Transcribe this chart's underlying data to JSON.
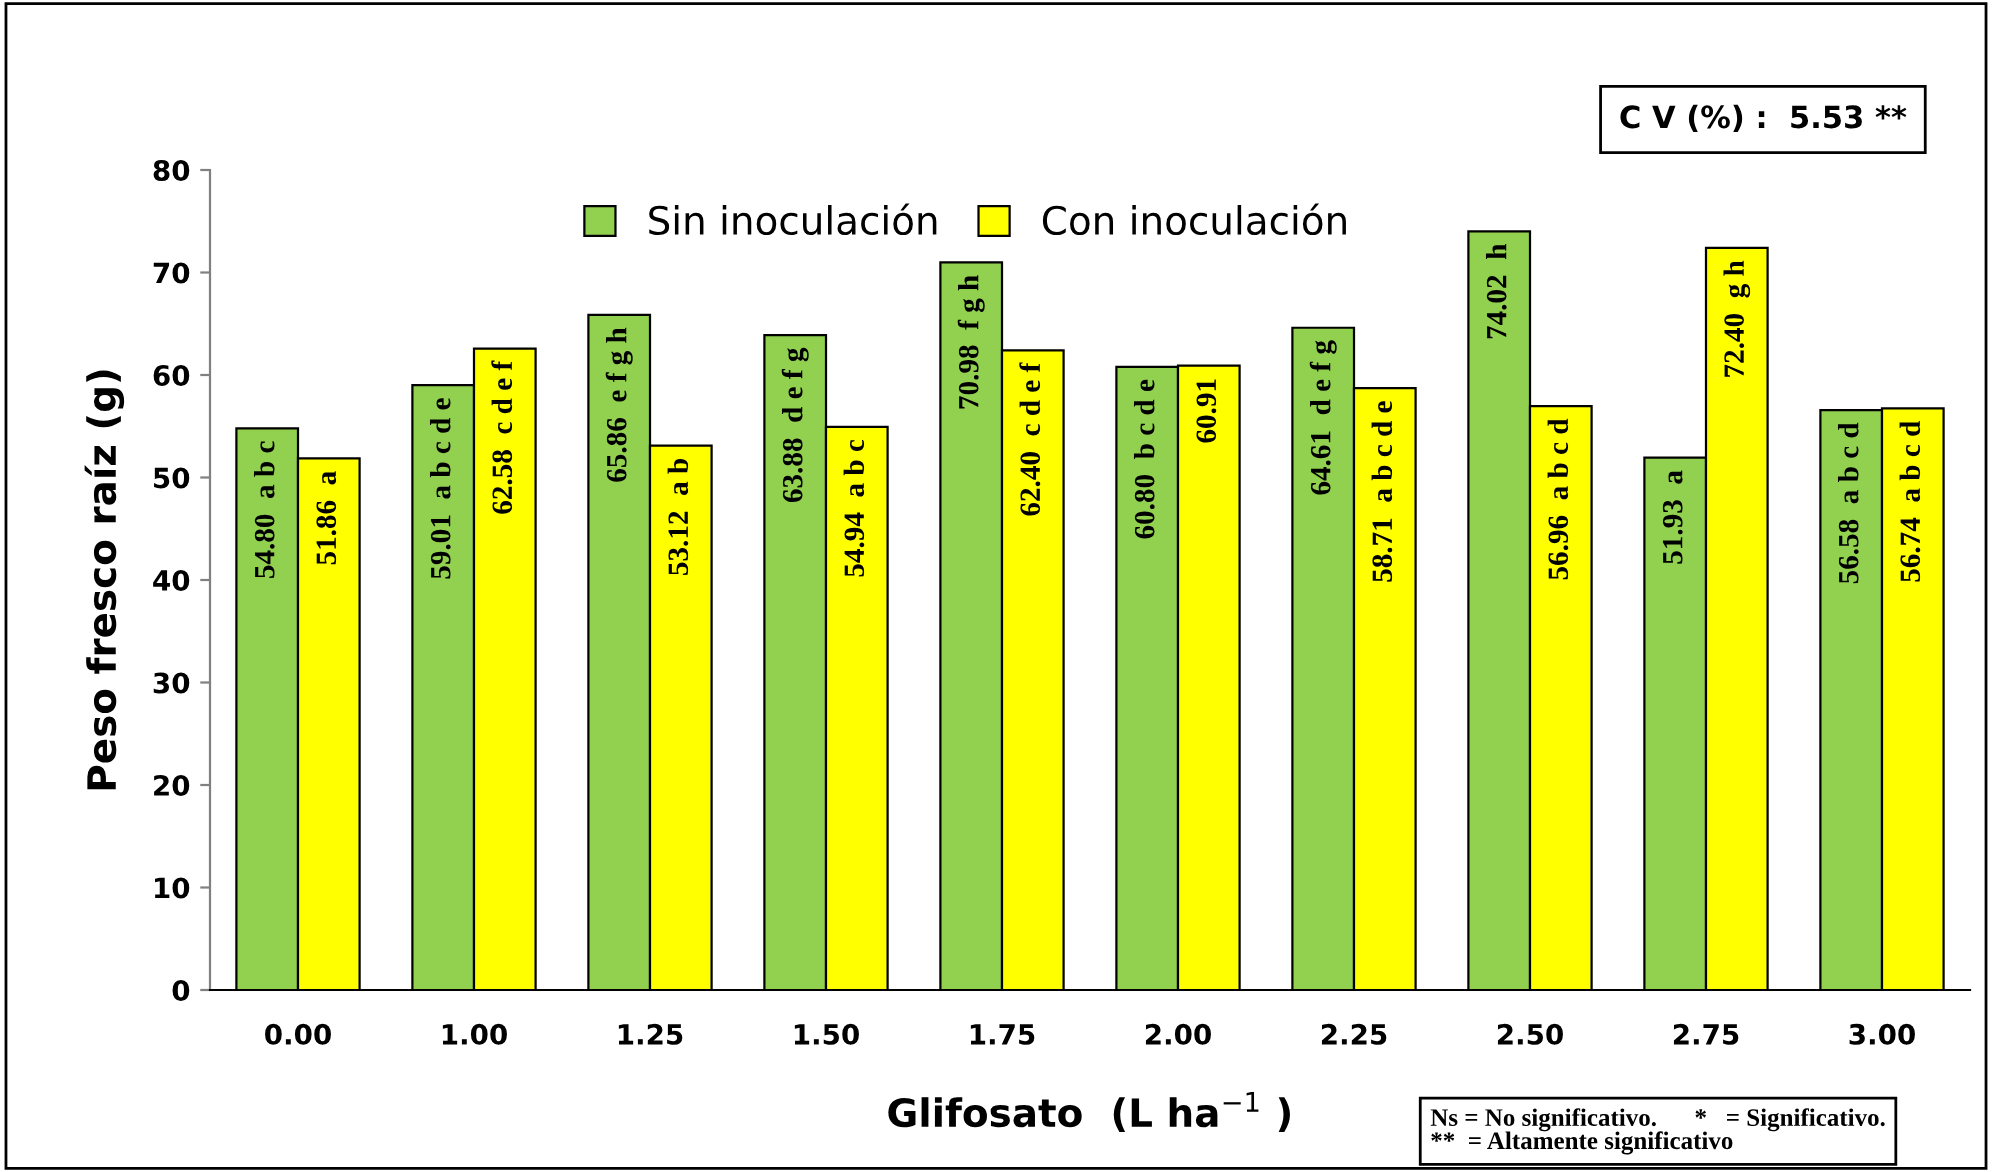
{
  "chart_data": {
    "type": "bar",
    "xlabel": "Glifosato  (L ha$^{−1}$ )",
    "ylabel": "Peso fresco raíz (g)",
    "categories": [
      "0.00",
      "1.00",
      "1.25",
      "1.50",
      "1.75",
      "2.00",
      "2.25",
      "2.50",
      "2.75",
      "3.00"
    ],
    "series": [
      {
        "name": "Sin inoculación",
        "color": "#92d050",
        "values": [
          54.8,
          59.01,
          65.86,
          63.88,
          70.98,
          60.8,
          64.61,
          74.02,
          51.93,
          56.58
        ],
        "value_labels": [
          "54.80  a b c",
          "59.01  a b c d e",
          "65.86  e f g h",
          "63.88  d e f g",
          "70.98  f g h",
          "60.80  b c d e",
          "64.61  d e f g",
          "74.02  h",
          "51.93  a",
          "56.58  a b c d"
        ]
      },
      {
        "name": "Con inoculación",
        "color": "#ffff00",
        "values": [
          51.86,
          62.58,
          53.12,
          54.94,
          62.4,
          60.91,
          58.71,
          56.96,
          72.4,
          56.74
        ],
        "value_labels": [
          "51.86  a",
          "62.58  c d e f",
          "53.12  a b",
          "54.94  a b c",
          "62.40  c d e f",
          "60.91",
          "58.71  a b c d e",
          "56.96  a b c d",
          "72.40  g h",
          "56.74  a b c d"
        ]
      }
    ],
    "ylim": [
      0,
      80
    ],
    "yticks": [
      0,
      10,
      20,
      30,
      40,
      50,
      60,
      70,
      80
    ],
    "grid": false,
    "legend": "top",
    "annotations": [
      "C V (%) :  5.53 **",
      "Ns = No significativo.      *   = Significativo.\n**  = Altamente significativo"
    ]
  }
}
